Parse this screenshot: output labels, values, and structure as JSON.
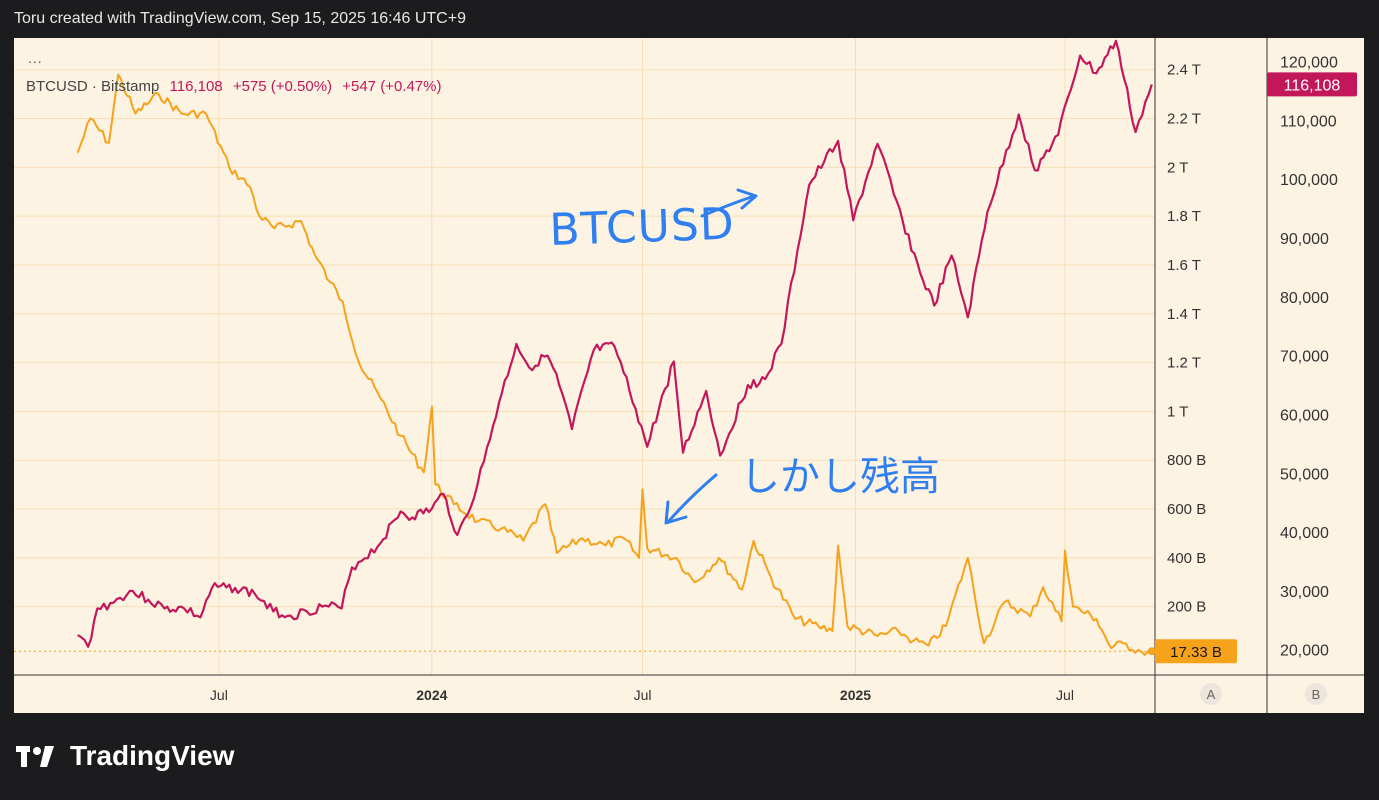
{
  "header": {
    "title": "Toru created with TradingView.com, Sep 15, 2025 16:46 UTC+9"
  },
  "legend": {
    "dots": "...",
    "symbol": "BTCUSD · Bitstamp",
    "last": "116,108",
    "change1": "+575 (+0.50%)",
    "change2": "+547 (+0.47%)"
  },
  "annotations": {
    "btc_label": "BTCUSD",
    "jp_label": "しかし残高"
  },
  "footer": {
    "brand": "TradingView"
  },
  "colors": {
    "btc": "#c2185b",
    "balance": "#f7a21b",
    "bg": "#fdf3e3",
    "grid": "#f7dfb6"
  },
  "chart_data": {
    "type": "line",
    "title": "",
    "x_axis": {
      "ticks": [
        {
          "label": "Jul",
          "date": "2023-07-01",
          "bold": false
        },
        {
          "label": "2024",
          "date": "2024-01-01",
          "bold": true
        },
        {
          "label": "Jul",
          "date": "2024-07-01",
          "bold": false
        },
        {
          "label": "2025",
          "date": "2025-01-01",
          "bold": true
        },
        {
          "label": "Jul",
          "date": "2025-07-01",
          "bold": false
        }
      ]
    },
    "left_axis": {
      "name": "A",
      "ticks": [
        "2.4 T",
        "2.2 T",
        "2 T",
        "1.8 T",
        "1.6 T",
        "1.4 T",
        "1.2 T",
        "1 T",
        "800 B",
        "600 B",
        "400 B",
        "200 B"
      ],
      "tick_values": [
        2.4,
        2.2,
        2.0,
        1.8,
        1.6,
        1.4,
        1.2,
        1.0,
        0.8,
        0.6,
        0.4,
        0.2
      ],
      "range": [
        -0.08,
        2.53
      ],
      "last_label": "17.33 B",
      "last_value": 0.01733
    },
    "right_axis": {
      "name": "B",
      "ticks": [
        "120,000",
        "110,000",
        "100,000",
        "90,000",
        "80,000",
        "70,000",
        "60,000",
        "50,000",
        "40,000",
        "30,000",
        "20,000"
      ],
      "tick_values": [
        120000,
        110000,
        100000,
        90000,
        80000,
        70000,
        60000,
        50000,
        40000,
        30000,
        20000
      ],
      "range": [
        15700,
        124000
      ],
      "last_label": "116,108",
      "last_value": 116108
    },
    "series": [
      {
        "name": "BTCUSD",
        "axis": "right",
        "points": [
          [
            "2023-03-01",
            22500
          ],
          [
            "2023-03-10",
            20500
          ],
          [
            "2023-03-18",
            27000
          ],
          [
            "2023-04-01",
            28000
          ],
          [
            "2023-04-15",
            30000
          ],
          [
            "2023-05-01",
            28500
          ],
          [
            "2023-05-15",
            27000
          ],
          [
            "2023-06-01",
            27000
          ],
          [
            "2023-06-15",
            25500
          ],
          [
            "2023-06-25",
            30500
          ],
          [
            "2023-07-15",
            30500
          ],
          [
            "2023-08-01",
            29500
          ],
          [
            "2023-08-17",
            26500
          ],
          [
            "2023-09-01",
            25800
          ],
          [
            "2023-09-15",
            26500
          ],
          [
            "2023-10-01",
            27500
          ],
          [
            "2023-10-15",
            27000
          ],
          [
            "2023-10-24",
            34000
          ],
          [
            "2023-11-15",
            37500
          ],
          [
            "2023-12-05",
            43500
          ],
          [
            "2023-12-15",
            42500
          ],
          [
            "2024-01-01",
            44000
          ],
          [
            "2024-01-11",
            46500
          ],
          [
            "2024-01-23",
            39500
          ],
          [
            "2024-02-01",
            43000
          ],
          [
            "2024-02-15",
            52000
          ],
          [
            "2024-02-28",
            62000
          ],
          [
            "2024-03-14",
            72000
          ],
          [
            "2024-03-25",
            68000
          ],
          [
            "2024-04-10",
            70000
          ],
          [
            "2024-04-20",
            65000
          ],
          [
            "2024-05-01",
            57500
          ],
          [
            "2024-05-20",
            71000
          ],
          [
            "2024-06-07",
            71500
          ],
          [
            "2024-06-25",
            61000
          ],
          [
            "2024-07-05",
            54500
          ],
          [
            "2024-07-28",
            69000
          ],
          [
            "2024-08-05",
            53500
          ],
          [
            "2024-08-25",
            64000
          ],
          [
            "2024-09-06",
            53000
          ],
          [
            "2024-09-30",
            65000
          ],
          [
            "2024-10-15",
            66000
          ],
          [
            "2024-10-29",
            72000
          ],
          [
            "2024-11-12",
            88000
          ],
          [
            "2024-11-22",
            99000
          ],
          [
            "2024-12-05",
            103000
          ],
          [
            "2024-12-17",
            106500
          ],
          [
            "2024-12-30",
            93000
          ],
          [
            "2025-01-20",
            106000
          ],
          [
            "2025-02-03",
            97500
          ],
          [
            "2025-02-26",
            84000
          ],
          [
            "2025-03-10",
            78500
          ],
          [
            "2025-03-25",
            87000
          ],
          [
            "2025-04-08",
            76500
          ],
          [
            "2025-04-25",
            94500
          ],
          [
            "2025-05-22",
            111000
          ],
          [
            "2025-06-05",
            101500
          ],
          [
            "2025-06-25",
            107500
          ],
          [
            "2025-07-14",
            121000
          ],
          [
            "2025-07-28",
            118000
          ],
          [
            "2025-08-14",
            123500
          ],
          [
            "2025-08-31",
            108000
          ],
          [
            "2025-09-14",
            116108
          ]
        ]
      },
      {
        "name": "",
        "axis": "left",
        "points": [
          [
            "2023-03-01",
            2.06
          ],
          [
            "2023-03-12",
            2.2
          ],
          [
            "2023-03-28",
            2.1
          ],
          [
            "2023-04-05",
            2.38
          ],
          [
            "2023-04-20",
            2.22
          ],
          [
            "2023-05-10",
            2.3
          ],
          [
            "2023-05-30",
            2.22
          ],
          [
            "2023-06-20",
            2.22
          ],
          [
            "2023-07-10",
            2.0
          ],
          [
            "2023-07-28",
            1.92
          ],
          [
            "2023-08-05",
            1.8
          ],
          [
            "2023-08-18",
            1.75
          ],
          [
            "2023-09-10",
            1.78
          ],
          [
            "2023-09-22",
            1.64
          ],
          [
            "2023-10-05",
            1.53
          ],
          [
            "2023-10-16",
            1.45
          ],
          [
            "2023-10-30",
            1.2
          ],
          [
            "2023-11-18",
            1.05
          ],
          [
            "2023-12-05",
            0.9
          ],
          [
            "2023-12-25",
            0.75
          ],
          [
            "2024-01-01",
            1.02
          ],
          [
            "2024-01-04",
            0.7
          ],
          [
            "2024-01-20",
            0.62
          ],
          [
            "2024-02-10",
            0.55
          ],
          [
            "2024-03-01",
            0.52
          ],
          [
            "2024-03-20",
            0.47
          ],
          [
            "2024-04-08",
            0.62
          ],
          [
            "2024-04-18",
            0.42
          ],
          [
            "2024-05-10",
            0.48
          ],
          [
            "2024-05-30",
            0.45
          ],
          [
            "2024-06-15",
            0.48
          ],
          [
            "2024-06-28",
            0.4
          ],
          [
            "2024-07-01",
            0.68
          ],
          [
            "2024-07-05",
            0.44
          ],
          [
            "2024-07-30",
            0.4
          ],
          [
            "2024-08-15",
            0.3
          ],
          [
            "2024-09-05",
            0.4
          ],
          [
            "2024-09-25",
            0.27
          ],
          [
            "2024-10-05",
            0.47
          ],
          [
            "2024-10-20",
            0.32
          ],
          [
            "2024-11-10",
            0.15
          ],
          [
            "2024-11-30",
            0.12
          ],
          [
            "2024-12-12",
            0.1
          ],
          [
            "2024-12-17",
            0.45
          ],
          [
            "2024-12-25",
            0.12
          ],
          [
            "2025-01-20",
            0.08
          ],
          [
            "2025-02-07",
            0.1
          ],
          [
            "2025-02-20",
            0.06
          ],
          [
            "2025-03-05",
            0.04
          ],
          [
            "2025-03-20",
            0.12
          ],
          [
            "2025-04-08",
            0.4
          ],
          [
            "2025-04-22",
            0.05
          ],
          [
            "2025-05-10",
            0.22
          ],
          [
            "2025-06-01",
            0.16
          ],
          [
            "2025-06-12",
            0.28
          ],
          [
            "2025-06-28",
            0.14
          ],
          [
            "2025-07-01",
            0.43
          ],
          [
            "2025-07-08",
            0.2
          ],
          [
            "2025-07-28",
            0.15
          ],
          [
            "2025-08-10",
            0.03
          ],
          [
            "2025-08-20",
            0.05
          ],
          [
            "2025-09-05",
            0.015
          ],
          [
            "2025-09-14",
            0.01733
          ]
        ]
      }
    ],
    "grid": true,
    "legend_position": "top-left"
  }
}
